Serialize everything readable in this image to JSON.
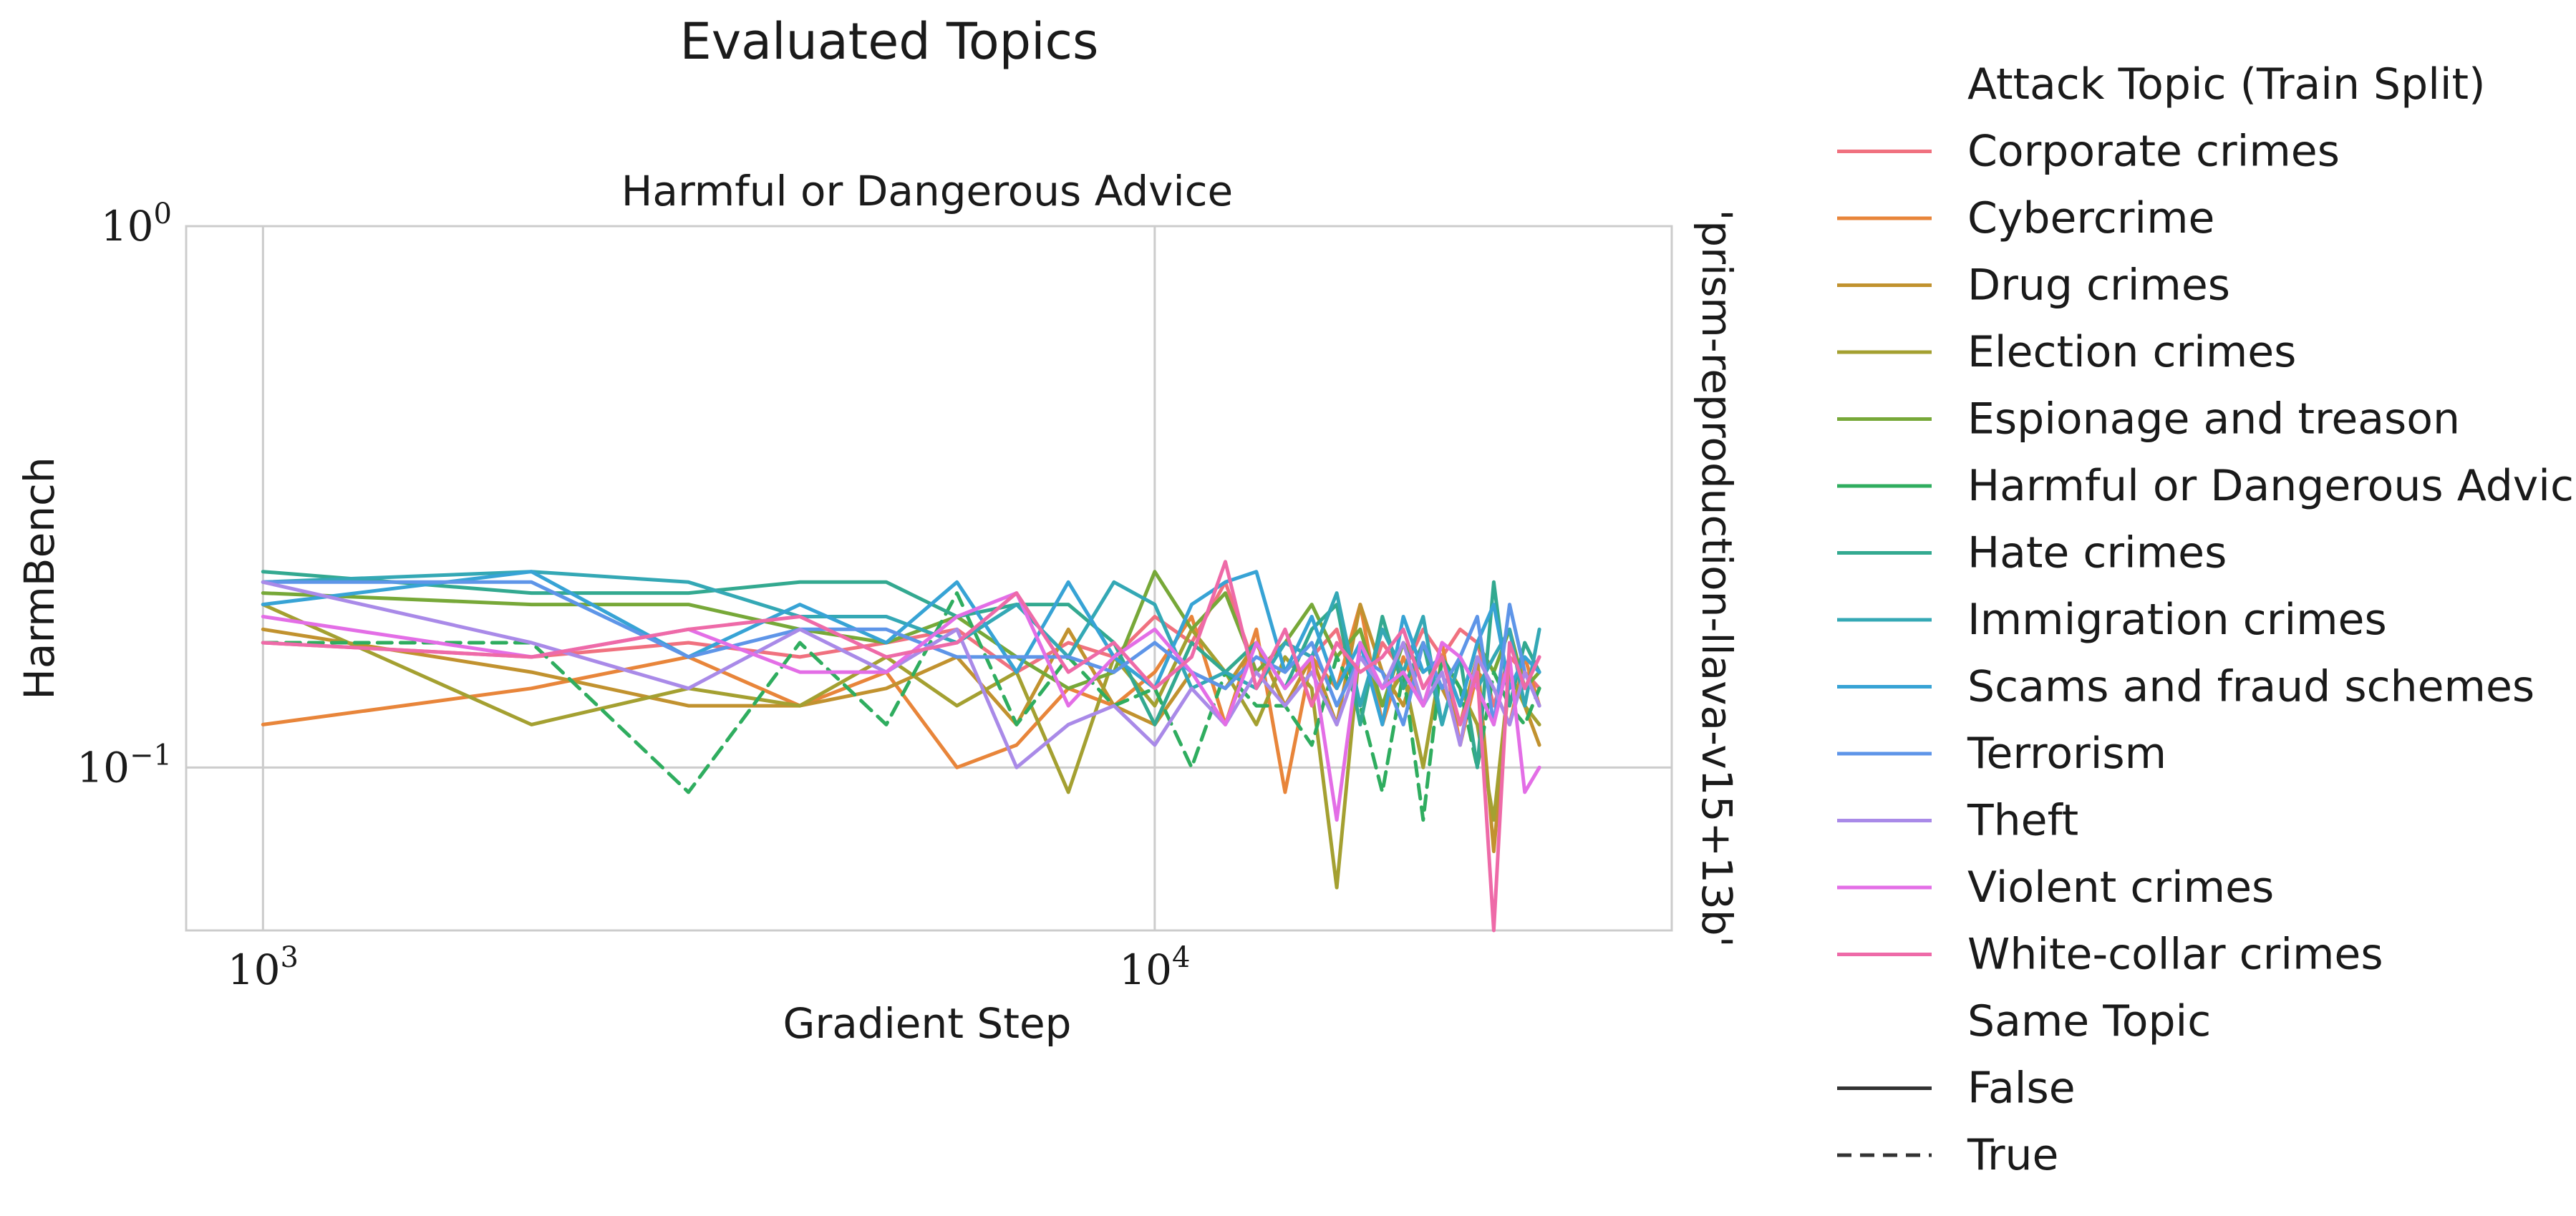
{
  "figure": {
    "suptitle": "Evaluated Topics",
    "row_label": "'prism-reproduction-llava-v15+13b'"
  },
  "chart_data": {
    "type": "line",
    "title": "Harmful or Dangerous Advice",
    "xlabel": "Gradient Step",
    "ylabel": "HarmBench",
    "x_scale": "log",
    "y_scale": "log",
    "xlim": [
      820,
      38000
    ],
    "ylim": [
      0.05,
      1.0
    ],
    "x_ticks": [
      {
        "value": 1000,
        "base": "10",
        "exp": "3"
      },
      {
        "value": 10000,
        "base": "10",
        "exp": "4"
      }
    ],
    "y_ticks": [
      {
        "value": 0.1,
        "base": "10",
        "exp": "−1"
      },
      {
        "value": 1.0,
        "base": "10",
        "exp": "0"
      }
    ],
    "grid": true,
    "legend": {
      "placement": "outside-right",
      "hue_title": "Attack Topic (Train Split)",
      "style_title": "Same Topic",
      "style_entries": [
        {
          "label": "False",
          "dash": "solid"
        },
        {
          "label": "True",
          "dash": "dashed"
        }
      ]
    },
    "series": [
      {
        "name": "Corporate crimes",
        "color": "#f0717f",
        "dashed": false,
        "x": [
          1000,
          2000,
          3000,
          4000,
          5000,
          6000,
          7000,
          8000,
          9000,
          10000,
          11000,
          12000,
          13000,
          14000,
          15000,
          16000,
          17000,
          18000,
          19000,
          20000,
          21000,
          22000,
          23000,
          24000,
          25000,
          26000,
          27000
        ],
        "y": [
          0.17,
          0.16,
          0.17,
          0.16,
          0.17,
          0.18,
          0.15,
          0.17,
          0.16,
          0.19,
          0.17,
          0.22,
          0.15,
          0.17,
          0.16,
          0.18,
          0.13,
          0.17,
          0.15,
          0.18,
          0.16,
          0.18,
          0.17,
          0.13,
          0.16,
          0.15,
          0.14
        ]
      },
      {
        "name": "Cybercrime",
        "color": "#e8853a",
        "dashed": false,
        "x": [
          1000,
          2000,
          3000,
          4000,
          5000,
          6000,
          7000,
          8000,
          9000,
          10000,
          11000,
          12000,
          13000,
          14000,
          15000,
          16000,
          17000,
          18000,
          19000,
          20000,
          21000,
          22000,
          23000,
          24000,
          25000,
          26000,
          27000
        ],
        "y": [
          0.12,
          0.14,
          0.16,
          0.13,
          0.15,
          0.1,
          0.11,
          0.14,
          0.13,
          0.15,
          0.19,
          0.12,
          0.18,
          0.09,
          0.16,
          0.14,
          0.2,
          0.12,
          0.16,
          0.13,
          0.17,
          0.11,
          0.15,
          0.14,
          0.12,
          0.16,
          0.13
        ]
      },
      {
        "name": "Drug crimes",
        "color": "#c1922f",
        "dashed": false,
        "x": [
          1000,
          2000,
          3000,
          4000,
          5000,
          6000,
          7000,
          8000,
          9000,
          10000,
          11000,
          12000,
          13000,
          14000,
          15000,
          16000,
          17000,
          18000,
          19000,
          20000,
          21000,
          22000,
          23000,
          24000,
          25000,
          26000,
          27000
        ],
        "y": [
          0.18,
          0.15,
          0.13,
          0.13,
          0.14,
          0.16,
          0.12,
          0.18,
          0.13,
          0.12,
          0.15,
          0.14,
          0.17,
          0.13,
          0.16,
          0.12,
          0.2,
          0.15,
          0.13,
          0.17,
          0.14,
          0.12,
          0.16,
          0.07,
          0.15,
          0.13,
          0.11
        ]
      },
      {
        "name": "Election crimes",
        "color": "#a4a031",
        "dashed": false,
        "x": [
          1000,
          2000,
          3000,
          4000,
          5000,
          6000,
          7000,
          8000,
          9000,
          10000,
          11000,
          12000,
          13000,
          14000,
          15000,
          16000,
          17000,
          18000,
          19000,
          20000,
          21000,
          22000,
          23000,
          24000,
          25000,
          26000,
          27000
        ],
        "y": [
          0.2,
          0.12,
          0.14,
          0.13,
          0.16,
          0.13,
          0.15,
          0.09,
          0.16,
          0.13,
          0.18,
          0.15,
          0.12,
          0.16,
          0.14,
          0.06,
          0.17,
          0.13,
          0.15,
          0.1,
          0.16,
          0.14,
          0.12,
          0.08,
          0.15,
          0.13,
          0.12
        ]
      },
      {
        "name": "Espionage and treason",
        "color": "#77a838",
        "dashed": false,
        "x": [
          1000,
          2000,
          3000,
          4000,
          5000,
          6000,
          7000,
          8000,
          9000,
          10000,
          11000,
          12000,
          13000,
          14000,
          15000,
          16000,
          17000,
          18000,
          19000,
          20000,
          21000,
          22000,
          23000,
          24000,
          25000,
          26000,
          27000
        ],
        "y": [
          0.21,
          0.2,
          0.2,
          0.18,
          0.17,
          0.19,
          0.16,
          0.14,
          0.15,
          0.23,
          0.18,
          0.21,
          0.15,
          0.17,
          0.2,
          0.16,
          0.18,
          0.13,
          0.17,
          0.15,
          0.16,
          0.13,
          0.17,
          0.15,
          0.18,
          0.14,
          0.15
        ]
      },
      {
        "name": "Harmful or Dangerous Advice",
        "color": "#2fad5f",
        "dashed": true,
        "x": [
          1000,
          2000,
          3000,
          4000,
          5000,
          6000,
          7000,
          8000,
          9000,
          10000,
          11000,
          12000,
          13000,
          14000,
          15000,
          16000,
          17000,
          18000,
          19000,
          20000,
          21000,
          22000,
          23000,
          24000,
          25000,
          26000,
          27000
        ],
        "y": [
          0.17,
          0.17,
          0.09,
          0.17,
          0.12,
          0.21,
          0.12,
          0.16,
          0.13,
          0.14,
          0.1,
          0.15,
          0.13,
          0.13,
          0.11,
          0.16,
          0.13,
          0.09,
          0.15,
          0.08,
          0.16,
          0.14,
          0.1,
          0.15,
          0.13,
          0.12,
          0.14
        ]
      },
      {
        "name": "Hate crimes",
        "color": "#33a990",
        "dashed": false,
        "x": [
          1000,
          2000,
          3000,
          4000,
          5000,
          6000,
          7000,
          8000,
          9000,
          10000,
          11000,
          12000,
          13000,
          14000,
          15000,
          16000,
          17000,
          18000,
          19000,
          20000,
          21000,
          22000,
          23000,
          24000,
          25000,
          26000,
          27000
        ],
        "y": [
          0.23,
          0.21,
          0.21,
          0.22,
          0.22,
          0.19,
          0.2,
          0.2,
          0.17,
          0.12,
          0.17,
          0.15,
          0.17,
          0.14,
          0.18,
          0.2,
          0.12,
          0.19,
          0.14,
          0.17,
          0.12,
          0.16,
          0.1,
          0.22,
          0.13,
          0.17,
          0.15
        ]
      },
      {
        "name": "Immigration crimes",
        "color": "#34a8b5",
        "dashed": false,
        "x": [
          1000,
          2000,
          3000,
          4000,
          5000,
          6000,
          7000,
          8000,
          9000,
          10000,
          11000,
          12000,
          13000,
          14000,
          15000,
          16000,
          17000,
          18000,
          19000,
          20000,
          21000,
          22000,
          23000,
          24000,
          25000,
          26000,
          27000
        ],
        "y": [
          0.22,
          0.23,
          0.22,
          0.19,
          0.19,
          0.17,
          0.2,
          0.16,
          0.22,
          0.2,
          0.14,
          0.15,
          0.14,
          0.17,
          0.16,
          0.21,
          0.13,
          0.18,
          0.15,
          0.19,
          0.12,
          0.16,
          0.14,
          0.16,
          0.18,
          0.13,
          0.18
        ]
      },
      {
        "name": "Scams and fraud schemes",
        "color": "#37a3d5",
        "dashed": false,
        "x": [
          1000,
          2000,
          3000,
          4000,
          5000,
          6000,
          7000,
          8000,
          9000,
          10000,
          11000,
          12000,
          13000,
          14000,
          15000,
          16000,
          17000,
          18000,
          19000,
          20000,
          21000,
          22000,
          23000,
          24000,
          25000,
          26000,
          27000
        ],
        "y": [
          0.2,
          0.23,
          0.16,
          0.2,
          0.17,
          0.22,
          0.15,
          0.22,
          0.16,
          0.14,
          0.2,
          0.22,
          0.23,
          0.15,
          0.19,
          0.14,
          0.17,
          0.12,
          0.19,
          0.15,
          0.16,
          0.13,
          0.17,
          0.2,
          0.14,
          0.16,
          0.15
        ]
      },
      {
        "name": "Terrorism",
        "color": "#5e95e8",
        "dashed": false,
        "x": [
          1000,
          2000,
          3000,
          4000,
          5000,
          6000,
          7000,
          8000,
          9000,
          10000,
          11000,
          12000,
          13000,
          14000,
          15000,
          16000,
          17000,
          18000,
          19000,
          20000,
          21000,
          22000,
          23000,
          24000,
          25000,
          26000,
          27000
        ],
        "y": [
          0.22,
          0.22,
          0.16,
          0.18,
          0.18,
          0.16,
          0.16,
          0.16,
          0.15,
          0.17,
          0.15,
          0.14,
          0.16,
          0.15,
          0.17,
          0.13,
          0.16,
          0.15,
          0.12,
          0.17,
          0.14,
          0.16,
          0.19,
          0.12,
          0.2,
          0.15,
          0.13
        ]
      },
      {
        "name": "Theft",
        "color": "#a98ae8",
        "dashed": false,
        "x": [
          1000,
          2000,
          3000,
          4000,
          5000,
          6000,
          7000,
          8000,
          9000,
          10000,
          11000,
          12000,
          13000,
          14000,
          15000,
          16000,
          17000,
          18000,
          19000,
          20000,
          21000,
          22000,
          23000,
          24000,
          25000,
          26000,
          27000
        ],
        "y": [
          0.22,
          0.17,
          0.14,
          0.18,
          0.15,
          0.18,
          0.1,
          0.12,
          0.13,
          0.11,
          0.14,
          0.12,
          0.15,
          0.13,
          0.15,
          0.12,
          0.16,
          0.14,
          0.17,
          0.13,
          0.15,
          0.11,
          0.16,
          0.14,
          0.12,
          0.15,
          0.13
        ]
      },
      {
        "name": "Violent crimes",
        "color": "#e36ee6",
        "dashed": false,
        "x": [
          1000,
          2000,
          3000,
          4000,
          5000,
          6000,
          7000,
          8000,
          9000,
          10000,
          11000,
          12000,
          13000,
          14000,
          15000,
          16000,
          17000,
          18000,
          19000,
          20000,
          21000,
          22000,
          23000,
          24000,
          25000,
          26000,
          27000
        ],
        "y": [
          0.19,
          0.16,
          0.18,
          0.15,
          0.15,
          0.19,
          0.21,
          0.13,
          0.16,
          0.18,
          0.15,
          0.12,
          0.17,
          0.14,
          0.16,
          0.08,
          0.17,
          0.14,
          0.15,
          0.13,
          0.17,
          0.16,
          0.14,
          0.12,
          0.16,
          0.09,
          0.1
        ]
      },
      {
        "name": "White-collar crimes",
        "color": "#ee6aa8",
        "dashed": false,
        "x": [
          1000,
          2000,
          3000,
          4000,
          5000,
          6000,
          7000,
          8000,
          9000,
          10000,
          11000,
          12000,
          13000,
          14000,
          15000,
          16000,
          17000,
          18000,
          19000,
          20000,
          21000,
          22000,
          23000,
          24000,
          25000,
          26000,
          27000
        ],
        "y": [
          0.17,
          0.16,
          0.18,
          0.19,
          0.16,
          0.17,
          0.21,
          0.15,
          0.17,
          0.14,
          0.16,
          0.24,
          0.14,
          0.18,
          0.13,
          0.17,
          0.15,
          0.16,
          0.18,
          0.14,
          0.16,
          0.12,
          0.15,
          0.05,
          0.17,
          0.14,
          0.16
        ]
      }
    ]
  }
}
